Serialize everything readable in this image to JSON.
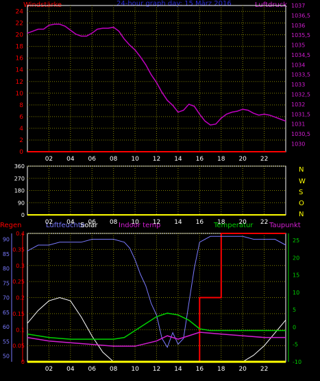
{
  "header": {
    "left_label": "Windstärke",
    "title": "24-hour graph day: 15 März 2016",
    "right_label": "Luftdruck"
  },
  "panel2": {
    "direction_letters": [
      "N",
      "W",
      "S",
      "O",
      "N"
    ]
  },
  "panel3": {
    "labels": {
      "regen": "Regen",
      "luftfeuchte": "Luftfeuchte",
      "solar": "Solar",
      "indoor": "Indoor temp",
      "temperatur": "Temperatur",
      "taupunkt": "Taupunkt"
    }
  },
  "colors": {
    "red": "#ff0000",
    "blue": "#2b2bd6",
    "magenta": "#d21ed2",
    "pressure": "#c000c0",
    "humidity": "#7a7aff",
    "solar": "#ffffff",
    "green": "#00d200",
    "yellow": "#ffff00",
    "axis": "#ffffff",
    "grid": "#808000"
  },
  "chart_data": [
    {
      "type": "line",
      "xticks": [
        "02",
        "04",
        "06",
        "08",
        "10",
        "12",
        "14",
        "16",
        "18",
        "20",
        "22"
      ],
      "x_range_hours": [
        0,
        24
      ],
      "left_axis": {
        "label": "Windstärke",
        "ticks": [
          0,
          2,
          4,
          6,
          8,
          10,
          12,
          14,
          16,
          18,
          20,
          22,
          24
        ],
        "range": [
          0,
          25
        ]
      },
      "right_axis": {
        "label": "Luftdruck",
        "ticks": [
          "1030",
          "1030,5",
          "1031",
          "1031,5",
          "1032",
          "1032,5",
          "1033",
          "1033,5",
          "1034",
          "1034,5",
          "1035",
          "1035,5",
          "1036",
          "1036,5",
          "1037"
        ],
        "range": [
          1029.6,
          1037
        ]
      },
      "series": [
        {
          "name": "Windstärke",
          "axis": "left",
          "x": [
            0,
            24
          ],
          "y": [
            0,
            0
          ]
        },
        {
          "name": "Luftdruck",
          "axis": "right",
          "x": [
            0,
            0.5,
            1,
            1.5,
            2,
            2.5,
            3,
            3.5,
            4,
            4.5,
            5,
            5.5,
            6,
            6.5,
            7,
            7.5,
            8,
            8.5,
            9,
            9.5,
            10,
            10.5,
            11,
            11.5,
            12,
            12.5,
            13,
            13.5,
            14,
            14.5,
            15,
            15.5,
            16,
            16.5,
            17,
            17.5,
            18,
            18.5,
            19,
            19.5,
            20,
            20.5,
            21,
            21.5,
            22,
            22.5,
            23,
            23.5,
            24
          ],
          "y": [
            1035.6,
            1035.7,
            1035.8,
            1035.8,
            1036,
            1036.05,
            1036.05,
            1035.95,
            1035.75,
            1035.55,
            1035.45,
            1035.45,
            1035.6,
            1035.8,
            1035.85,
            1035.85,
            1035.9,
            1035.7,
            1035.3,
            1035,
            1034.75,
            1034.4,
            1034,
            1033.5,
            1033.1,
            1032.6,
            1032.2,
            1031.95,
            1031.6,
            1031.7,
            1032,
            1031.9,
            1031.5,
            1031.15,
            1030.95,
            1031,
            1031.3,
            1031.5,
            1031.6,
            1031.65,
            1031.75,
            1031.7,
            1031.55,
            1031.45,
            1031.5,
            1031.45,
            1031.35,
            1031.25,
            1031.15
          ]
        }
      ]
    },
    {
      "type": "line",
      "xticks": [
        "02",
        "04",
        "06",
        "08",
        "10",
        "12",
        "14",
        "16",
        "18",
        "20",
        "22"
      ],
      "x_range_hours": [
        0,
        24
      ],
      "left_axis": {
        "label": "",
        "ticks": [
          0,
          90,
          180,
          270,
          360
        ],
        "range": [
          0,
          360
        ]
      },
      "right_axis_letters": [
        "N",
        "W",
        "S",
        "O",
        "N"
      ],
      "series": []
    },
    {
      "type": "line",
      "xticks": [
        "02",
        "04",
        "06",
        "08",
        "10",
        "12",
        "14",
        "16",
        "18",
        "20",
        "22"
      ],
      "x_range_hours": [
        0,
        24
      ],
      "axes": {
        "regen": {
          "label": "Regen",
          "ticks": [
            0,
            0.05,
            0.1,
            0.15,
            0.2,
            0.25,
            0.3,
            0.35,
            0.4
          ],
          "range": [
            0,
            0.4
          ]
        },
        "luftfeuchte": {
          "label": "Luftfeuchte",
          "ticks": [
            50,
            55,
            60,
            65,
            70,
            75,
            80,
            85,
            90
          ],
          "range": [
            48,
            92
          ]
        },
        "temperatur": {
          "label": "Temperatur",
          "ticks": [
            -10,
            -5,
            0,
            5,
            10,
            15,
            20,
            25
          ],
          "range": [
            -10,
            27
          ]
        }
      },
      "series": [
        {
          "name": "Regen",
          "axis": "regen",
          "x": [
            0,
            16,
            16,
            18,
            18,
            24
          ],
          "y": [
            0,
            0,
            0.2,
            0.2,
            0.4,
            0.4
          ]
        },
        {
          "name": "Luftfeuchte",
          "axis": "luftfeuchte",
          "x": [
            0,
            0.5,
            1,
            2,
            3,
            4,
            5,
            6,
            7,
            8,
            9,
            9.5,
            10,
            10.5,
            11,
            11.5,
            12,
            12.5,
            13,
            13.5,
            14,
            14.5,
            15,
            15.5,
            16,
            17,
            18,
            19,
            20,
            21,
            22,
            23,
            24
          ],
          "y": [
            86,
            87,
            88,
            88,
            89,
            89,
            89,
            90,
            90,
            90,
            89,
            87,
            83,
            78,
            74,
            68,
            64,
            56,
            53,
            58,
            54,
            56,
            68,
            80,
            89,
            91,
            91,
            91,
            91,
            90,
            90,
            90,
            88
          ]
        },
        {
          "name": "Solar",
          "axis": "regen",
          "x": [
            0,
            1,
            2,
            3,
            4,
            5,
            6,
            7,
            8,
            17,
            18,
            19,
            20,
            21,
            22,
            23,
            24
          ],
          "y": [
            0.12,
            0.16,
            0.19,
            0.2,
            0.19,
            0.14,
            0.08,
            0.03,
            0,
            0,
            0,
            0,
            0,
            0.02,
            0.05,
            0.09,
            0.13
          ]
        },
        {
          "name": "Indoor temp",
          "axis": "temperatur",
          "x": [
            0,
            2,
            4,
            6,
            8,
            10,
            12,
            13,
            14,
            15,
            16,
            18,
            20,
            22,
            24
          ],
          "y": [
            -3,
            -4,
            -4.5,
            -5,
            -5.5,
            -5.5,
            -4,
            -2.5,
            -3.5,
            -2.5,
            -1.5,
            -2,
            -2.5,
            -3,
            -3
          ]
        },
        {
          "name": "Temperatur",
          "axis": "temperatur",
          "x": [
            0,
            2,
            4,
            6,
            8,
            9,
            10,
            11,
            12,
            13,
            14,
            15,
            16,
            17,
            18,
            20,
            22,
            24
          ],
          "y": [
            -2,
            -3,
            -3.5,
            -3.5,
            -3.5,
            -3,
            -1,
            1,
            3,
            4,
            3.5,
            2,
            -0.5,
            -1,
            -1,
            -1,
            -1,
            -1
          ]
        },
        {
          "name": "Taupunkt",
          "axis": "temperatur",
          "x": [
            0,
            24
          ],
          "y": [
            -10,
            -10
          ]
        }
      ]
    }
  ]
}
